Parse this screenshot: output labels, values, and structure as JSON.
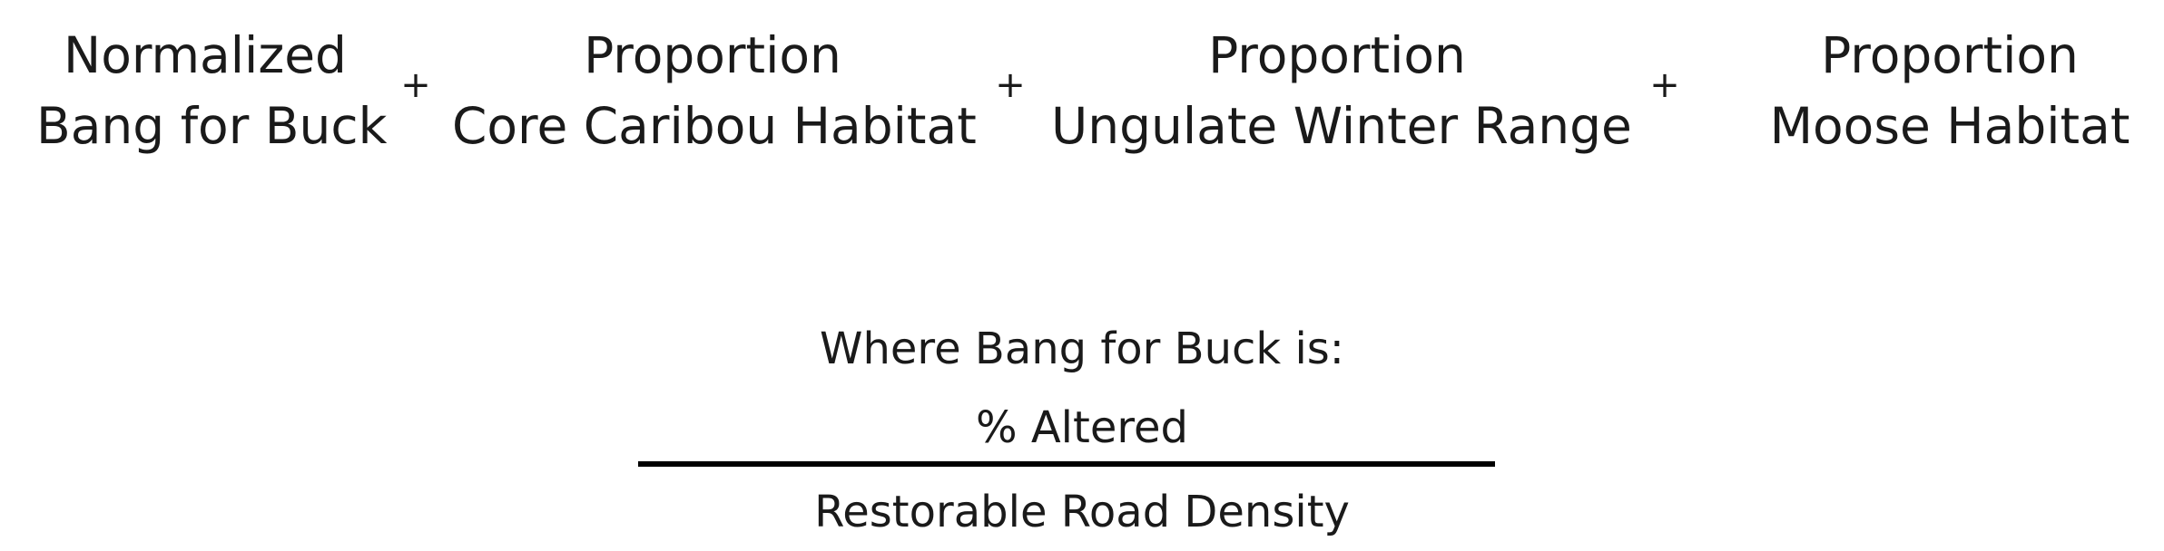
{
  "formula": {
    "terms": [
      {
        "line1": "Normalized",
        "line2": "Bang for Buck"
      },
      {
        "line1": "Proportion",
        "line2": "Core Caribou Habitat"
      },
      {
        "line1": "Proportion",
        "line2": "Ungulate Winter Range"
      },
      {
        "line1": "Proportion",
        "line2": "Moose Habitat"
      }
    ],
    "operator": "+"
  },
  "definition": {
    "intro": "Where Bang for Buck is:",
    "numerator": "% Altered",
    "denominator": "Restorable Road Density"
  }
}
